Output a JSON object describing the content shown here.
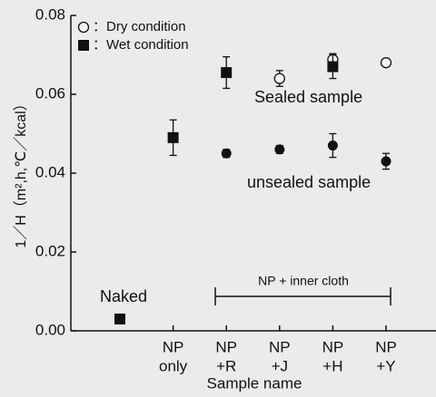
{
  "chart_data": {
    "type": "scatter",
    "y_label": "1／H（m²,h,℃／kcal）",
    "x_label": "Sample name",
    "categories": [
      null,
      [
        "NP",
        "only"
      ],
      [
        "NP",
        "+R"
      ],
      [
        "NP",
        "+J"
      ],
      [
        "NP",
        "+H"
      ],
      [
        "NP",
        "+Y"
      ]
    ],
    "series": [
      {
        "name": "：Dry condition",
        "marker": "circle-open",
        "values": [
          null,
          null,
          null,
          0.064,
          0.0688,
          0.068
        ],
        "errors": [
          null,
          null,
          null,
          0.002,
          0.0015,
          0.001
        ]
      },
      {
        "name": "：Wet condition",
        "marker": "square-filled",
        "values": [
          0.003,
          0.049,
          0.0655,
          null,
          0.067,
          null
        ],
        "errors": [
          null,
          0.0045,
          0.004,
          null,
          0.003,
          null
        ]
      },
      {
        "marker": "circle-filled",
        "values": [
          null,
          null,
          0.045,
          0.046,
          0.047,
          0.043
        ],
        "errors": [
          null,
          null,
          0.001,
          0.001,
          0.003,
          0.002
        ]
      }
    ],
    "ylim": [
      0,
      0.08
    ],
    "yticks": [
      {
        "value": 0,
        "label": "0.00"
      },
      {
        "value": 0.02,
        "label": "0.02"
      },
      {
        "value": 0.04,
        "label": "0.04"
      },
      {
        "value": 0.06,
        "label": "0.06"
      },
      {
        "value": 0.08,
        "label": "0.08"
      }
    ],
    "annotations": [
      "Sealed sample",
      "unsealed sample",
      "Naked",
      "NP + inner cloth"
    ]
  }
}
